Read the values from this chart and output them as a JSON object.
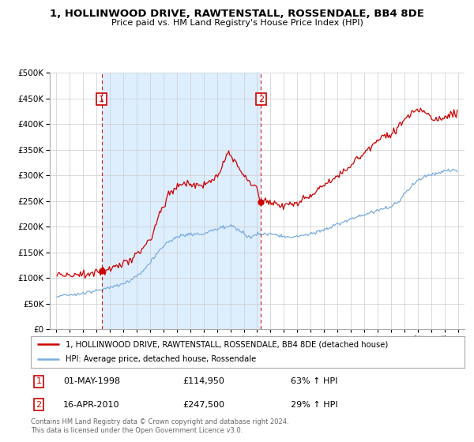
{
  "title": "1, HOLLINWOOD DRIVE, RAWTENSTALL, ROSSENDALE, BB4 8DE",
  "subtitle": "Price paid vs. HM Land Registry's House Price Index (HPI)",
  "red_label": "1, HOLLINWOOD DRIVE, RAWTENSTALL, ROSSENDALE, BB4 8DE (detached house)",
  "blue_label": "HPI: Average price, detached house, Rossendale",
  "point1_date": "01-MAY-1998",
  "point1_price": 114950,
  "point1_hpi_pct": "63%",
  "point2_date": "16-APR-2010",
  "point2_price": 247500,
  "point2_hpi_pct": "29%",
  "footer": "Contains HM Land Registry data © Crown copyright and database right 2024.\nThis data is licensed under the Open Government Licence v3.0.",
  "background_color": "#ffffff",
  "grid_color": "#cccccc",
  "red_color": "#cc0000",
  "blue_color": "#7aacdc",
  "shade_color": "#ddeeff",
  "ylim": [
    0,
    500000
  ],
  "yticks": [
    0,
    50000,
    100000,
    150000,
    200000,
    250000,
    300000,
    350000,
    400000,
    450000,
    500000
  ],
  "xlim_start": 1994.5,
  "xlim_end": 2025.5
}
